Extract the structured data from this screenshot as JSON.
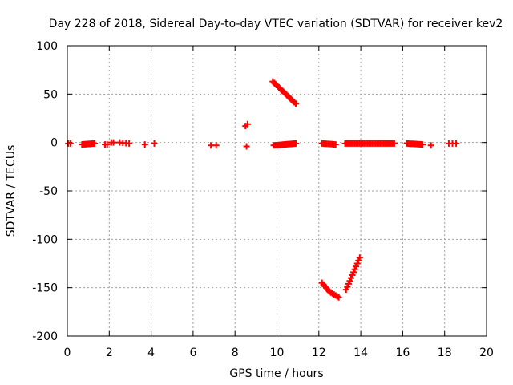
{
  "chart_data": {
    "type": "scatter",
    "title": "Day 228 of 2018, Sidereal Day-to-day VTEC variation (SDTVAR) for receiver kev2",
    "xlabel": "GPS time / hours",
    "ylabel": "SDTVAR / TECUs",
    "xlim": [
      0,
      20
    ],
    "ylim": [
      -200,
      100
    ],
    "xticks": [
      "0",
      "2",
      "4",
      "6",
      "8",
      "10",
      "12",
      "14",
      "16",
      "18",
      "20"
    ],
    "yticks": [
      "100",
      "50",
      "0",
      "-50",
      "-100",
      "-150",
      "-200"
    ],
    "grid": true,
    "marker": "plus",
    "color": "#ff0000",
    "segments": [
      {
        "x0": 0.05,
        "x1": 0.15,
        "y0": -1,
        "y1": -1,
        "n": 2
      },
      {
        "x0": 0.7,
        "x1": 1.3,
        "y0": -2,
        "y1": -1,
        "n": 14
      },
      {
        "x0": 1.8,
        "x1": 1.9,
        "y0": -2,
        "y1": -2,
        "n": 2
      },
      {
        "x0": 2.1,
        "x1": 2.2,
        "y0": 0,
        "y1": 0,
        "n": 2
      },
      {
        "x0": 2.5,
        "x1": 2.95,
        "y0": 0,
        "y1": -1,
        "n": 4
      },
      {
        "x0": 3.7,
        "x1": 3.7,
        "y0": -2,
        "y1": -2,
        "n": 1
      },
      {
        "x0": 4.15,
        "x1": 4.15,
        "y0": -1,
        "y1": -1,
        "n": 1
      },
      {
        "x0": 6.85,
        "x1": 7.1,
        "y0": -3,
        "y1": -3,
        "n": 2
      },
      {
        "x0": 8.5,
        "x1": 8.6,
        "y0": 17,
        "y1": 19,
        "n": 2
      },
      {
        "x0": 8.55,
        "x1": 8.55,
        "y0": -4,
        "y1": -4,
        "n": 1
      },
      {
        "x0": 9.85,
        "x1": 10.9,
        "y0": -3,
        "y1": -1,
        "n": 22
      },
      {
        "x0": 9.8,
        "x1": 10.9,
        "y0": 63,
        "y1": 40,
        "n": 16
      },
      {
        "x0": 12.15,
        "x1": 12.8,
        "y0": -1,
        "y1": -2,
        "n": 10
      },
      {
        "x0": 12.15,
        "x1": 12.5,
        "y0": -145,
        "y1": -154,
        "n": 6
      },
      {
        "x0": 12.5,
        "x1": 12.95,
        "y0": -154,
        "y1": -160,
        "n": 7
      },
      {
        "x0": 13.25,
        "x1": 15.6,
        "y0": -1,
        "y1": -1,
        "n": 32
      },
      {
        "x0": 13.3,
        "x1": 13.95,
        "y0": -152,
        "y1": -119,
        "n": 12
      },
      {
        "x0": 16.2,
        "x1": 16.95,
        "y0": -1,
        "y1": -2,
        "n": 12
      },
      {
        "x0": 17.35,
        "x1": 17.35,
        "y0": -3,
        "y1": -3,
        "n": 1
      },
      {
        "x0": 18.2,
        "x1": 18.55,
        "y0": -1,
        "y1": -1,
        "n": 3
      }
    ]
  }
}
